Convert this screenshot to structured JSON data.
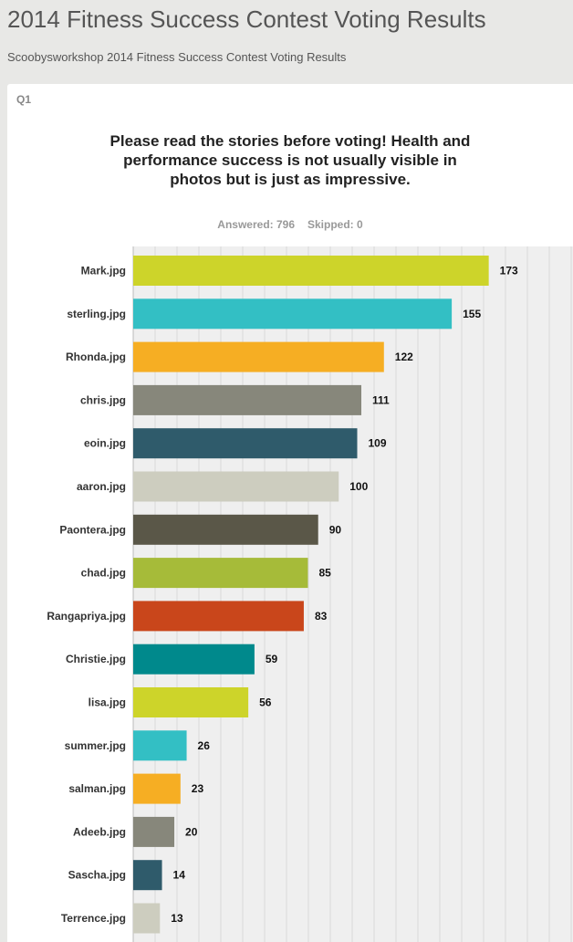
{
  "header": {
    "title": "2014 Fitness Success Contest Voting Results",
    "subtitle": "Scoobysworkshop 2014 Fitness Success Contest Voting Results"
  },
  "question": {
    "number": "Q1",
    "text": "Please read the stories before voting! Health and performance success is not usually visible in photos but is just as impressive.",
    "answered": "Answered: 796",
    "skipped": "Skipped: 0"
  },
  "chart_data": {
    "type": "bar",
    "orientation": "horizontal",
    "categories": [
      "Mark.jpg",
      "sterling.jpg",
      "Rhonda.jpg",
      "chris.jpg",
      "eoin.jpg",
      "aaron.jpg",
      "Paontera.jpg",
      "chad.jpg",
      "Rangapriya.jpg",
      "Christie.jpg",
      "lisa.jpg",
      "summer.jpg",
      "salman.jpg",
      "Adeeb.jpg",
      "Sascha.jpg",
      "Terrence.jpg"
    ],
    "values": [
      173,
      155,
      122,
      111,
      109,
      100,
      90,
      85,
      83,
      59,
      56,
      26,
      23,
      20,
      14,
      13
    ],
    "colors": [
      "#cdd42a",
      "#33bfc4",
      "#f6ae23",
      "#87877b",
      "#2f5b6b",
      "#cdcdbf",
      "#5a5748",
      "#a6bb39",
      "#c9461b",
      "#00898c",
      "#cdd42a",
      "#33bfc4",
      "#f6ae23",
      "#87877b",
      "#2f5b6b",
      "#cdcdbf"
    ],
    "xlim": [
      0,
      214
    ],
    "grid": true,
    "grid_color": "#d8d8d8",
    "plot_background": "#efefef"
  }
}
